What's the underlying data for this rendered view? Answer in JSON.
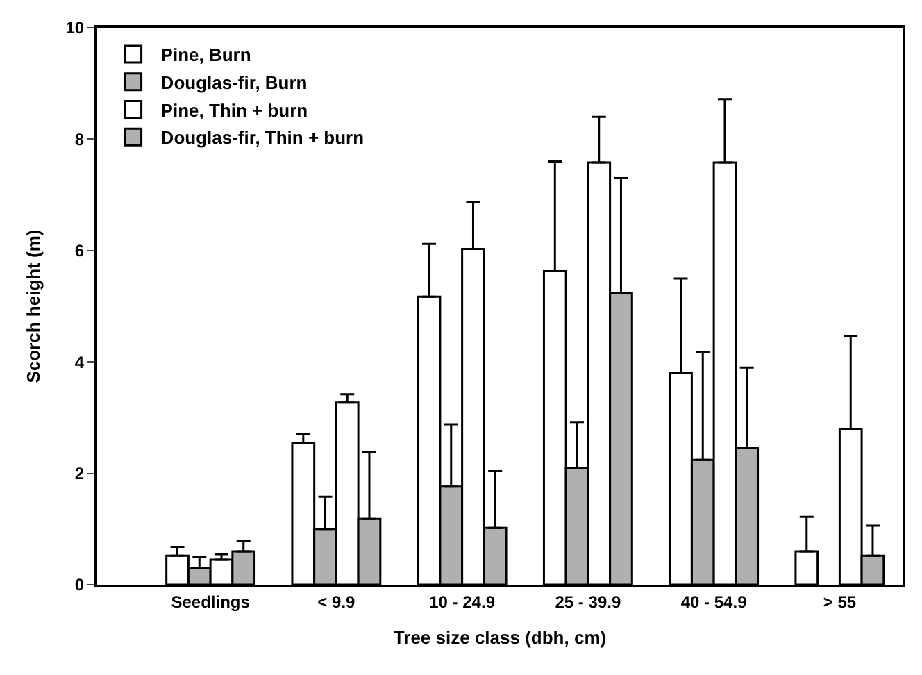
{
  "chart_data": {
    "type": "bar",
    "xlabel": "Tree size class (dbh, cm)",
    "ylabel": "Scorch height (m)",
    "categories": [
      "Seedlings",
      "< 9.9",
      "10 - 24.9",
      "25 - 39.9",
      "40 - 54.9",
      "> 55"
    ],
    "series": [
      {
        "name": "Pine, Burn",
        "color": "#ffffff",
        "values": [
          0.52,
          2.55,
          5.17,
          5.63,
          3.8,
          0.6
        ],
        "errors": [
          [
            0.52,
            0.68
          ],
          [
            2.55,
            2.7
          ],
          [
            5.17,
            6.12
          ],
          [
            5.63,
            7.6
          ],
          [
            3.8,
            5.5
          ],
          [
            0.6,
            1.22
          ]
        ]
      },
      {
        "name": "Douglas-fir, Burn",
        "color": "#b0b0b0",
        "values": [
          0.3,
          1.0,
          1.76,
          2.1,
          2.24,
          null
        ],
        "errors": [
          [
            0.3,
            0.5
          ],
          [
            1.0,
            1.58
          ],
          [
            1.76,
            2.88
          ],
          [
            2.1,
            2.92
          ],
          [
            2.24,
            4.18
          ],
          null
        ]
      },
      {
        "name": "Pine, Thin + burn",
        "color": "#ffffff",
        "values": [
          0.45,
          3.27,
          6.03,
          7.58,
          7.58,
          2.8
        ],
        "errors": [
          [
            0.45,
            0.55
          ],
          [
            3.27,
            3.42
          ],
          [
            6.03,
            6.87
          ],
          [
            7.58,
            8.4
          ],
          [
            7.58,
            8.72
          ],
          [
            2.8,
            4.47
          ]
        ]
      },
      {
        "name": "Douglas-fir, Thin + burn",
        "color": "#b0b0b0",
        "values": [
          0.6,
          1.18,
          1.02,
          5.23,
          2.46,
          0.52
        ],
        "errors": [
          [
            0.6,
            0.78
          ],
          [
            1.18,
            2.38
          ],
          [
            1.02,
            2.04
          ],
          [
            5.23,
            7.3
          ],
          [
            2.46,
            3.9
          ],
          [
            0.52,
            1.06
          ]
        ]
      }
    ],
    "ylim": [
      0,
      10
    ],
    "yticks": [
      0,
      2,
      4,
      6,
      8,
      10
    ],
    "legend": "top left"
  }
}
